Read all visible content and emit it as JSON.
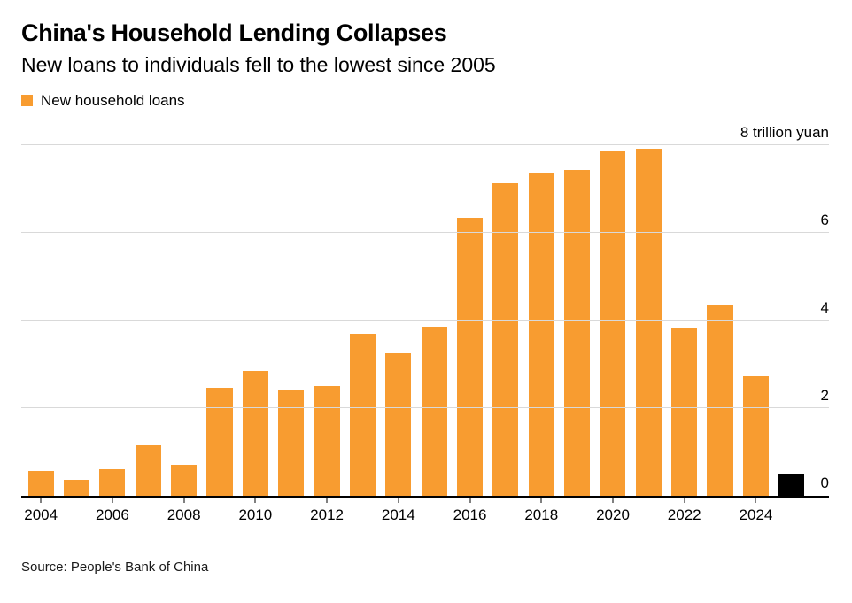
{
  "header": {
    "title": "China's Household Lending Collapses",
    "subtitle": "New loans to individuals fell to the lowest since 2005"
  },
  "legend": {
    "label": "New household loans"
  },
  "source": "Source: People's Bank of China",
  "colors": {
    "bar": "#F89C30",
    "highlight": "#000000",
    "gridline": "#D9D9D9",
    "axis": "#000000"
  },
  "chart_data": {
    "type": "bar",
    "title": "China's Household Lending Collapses",
    "subtitle": "New loans to individuals fell to the lowest since 2005",
    "ylabel": "trillion yuan",
    "xlabel": "",
    "legend_entries": [
      "New household loans"
    ],
    "legend_position": "top-left",
    "grid": "horizontal",
    "y_axis_side": "right",
    "ylim": [
      0,
      8
    ],
    "yticks": [
      0,
      2,
      4,
      6,
      8
    ],
    "ytick_labels": [
      "0",
      "2",
      "4",
      "6",
      "8 trillion yuan"
    ],
    "categories": [
      2004,
      2005,
      2006,
      2007,
      2008,
      2009,
      2010,
      2011,
      2012,
      2013,
      2014,
      2015,
      2016,
      2017,
      2018,
      2019,
      2020,
      2021,
      2022,
      2023,
      2024,
      2025
    ],
    "values": [
      0.55,
      0.35,
      0.6,
      1.15,
      0.7,
      2.45,
      2.85,
      2.4,
      2.5,
      3.7,
      3.25,
      3.85,
      6.33,
      7.13,
      7.36,
      7.43,
      7.87,
      7.92,
      3.83,
      4.33,
      2.72,
      0.5
    ],
    "highlight_index": 21,
    "xtick_labels": [
      "2004",
      "2006",
      "2008",
      "2010",
      "2012",
      "2014",
      "2016",
      "2018",
      "2020",
      "2022",
      "2024"
    ]
  }
}
